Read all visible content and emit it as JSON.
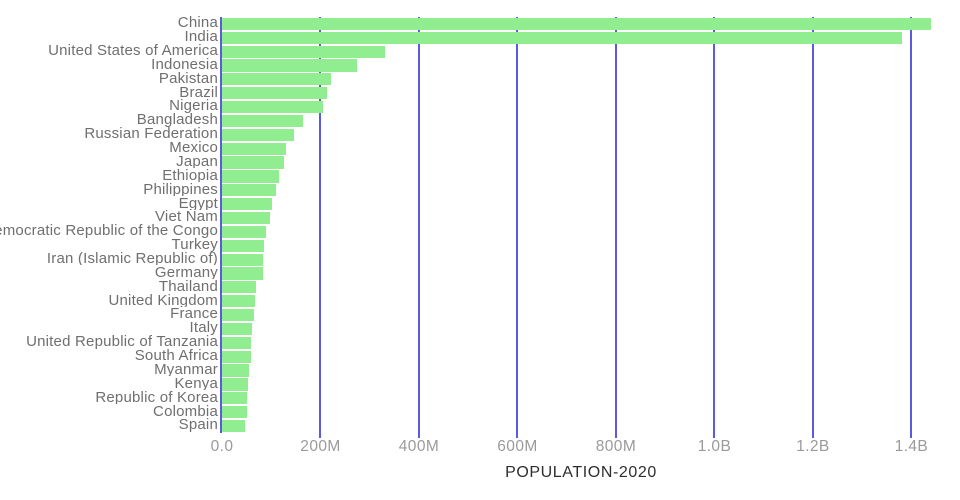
{
  "chart_data": {
    "type": "bar",
    "orientation": "horizontal",
    "title": "",
    "xlabel": "POPULATION-2020",
    "ylabel": "",
    "categories": [
      "China",
      "India",
      "United States of America",
      "Indonesia",
      "Pakistan",
      "Brazil",
      "Nigeria",
      "Bangladesh",
      "Russian Federation",
      "Mexico",
      "Japan",
      "Ethiopia",
      "Philippines",
      "Egypt",
      "Viet Nam",
      "Democratic Republic of the Congo",
      "Turkey",
      "Iran (Islamic Republic of)",
      "Germany",
      "Thailand",
      "United Kingdom",
      "France",
      "Italy",
      "United Republic of Tanzania",
      "South Africa",
      "Myanmar",
      "Kenya",
      "Republic of Korea",
      "Colombia",
      "Spain"
    ],
    "values_millions": [
      1439,
      1380,
      331,
      274,
      221,
      213,
      206,
      165,
      146,
      129,
      126,
      115,
      110,
      102,
      97,
      90,
      84.3,
      84.0,
      83.8,
      69.8,
      67.9,
      65.3,
      60.5,
      59.7,
      59.3,
      54.4,
      53.8,
      51.3,
      50.9,
      46.8
    ],
    "xlim_millions": [
      0,
      1458
    ],
    "x_ticks": [
      {
        "value": 0,
        "label": "0.0"
      },
      {
        "value": 200,
        "label": "200M"
      },
      {
        "value": 400,
        "label": "400M"
      },
      {
        "value": 600,
        "label": "600M"
      },
      {
        "value": 800,
        "label": "800M"
      },
      {
        "value": 1000,
        "label": "1.0B"
      },
      {
        "value": 1200,
        "label": "1.2B"
      },
      {
        "value": 1400,
        "label": "1.4B"
      }
    ],
    "grid": true,
    "legend": false,
    "bar_color": "#90ee90",
    "gridline_color": "#4444dd",
    "label_color": "#6f6f6f",
    "tick_label_color": "#9a9a9a",
    "axis_title_color": "#2e2e2e"
  }
}
